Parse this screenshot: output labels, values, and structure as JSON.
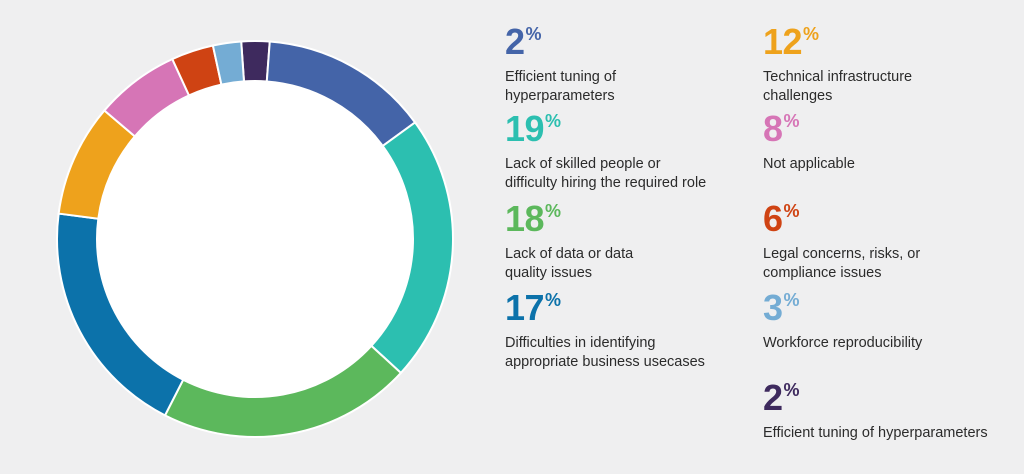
{
  "chart_data": {
    "type": "pie",
    "donut": true,
    "slices": [
      {
        "label": "Efficient tuning of hyperparameters",
        "value": 2,
        "color": "#3e2a5e"
      },
      {
        "label": "Technical infrastructure challenges",
        "value": 12,
        "color": "#4464a8"
      },
      {
        "label": "Lack of skilled people or difficulty hiring the required role",
        "value": 19,
        "color": "#2cbfb0"
      },
      {
        "label": "Lack of data or data quality issues",
        "value": 18,
        "color": "#5cb85c"
      },
      {
        "label": "Difficulties in identifying appropriate business usecases",
        "value": 17,
        "color": "#0c72aa"
      },
      {
        "label": "Not applicable",
        "value": 8,
        "color": "#eea21c"
      },
      {
        "label": "Legal concerns, risks, or compliance issues",
        "value": 6,
        "color": "#d675b6"
      },
      {
        "label": "Workforce reproducibility",
        "value": 3,
        "color": "#cf4313"
      },
      {
        "label": "Efficient tuning of hyperparameters",
        "value": 2,
        "color": "#74acd4"
      }
    ]
  },
  "legend": [
    {
      "value": "2",
      "sign": "%",
      "lines": [
        "Efficient tuning of",
        "hyperparameters"
      ],
      "color": "#4464a8"
    },
    {
      "value": "12",
      "sign": "%",
      "lines": [
        "Technical infrastructure",
        "challenges"
      ],
      "color": "#eea21c"
    },
    {
      "value": "19",
      "sign": "%",
      "lines": [
        "Lack of skilled people or",
        "difficulty hiring the required role"
      ],
      "color": "#2cbfb0"
    },
    {
      "value": "8",
      "sign": "%",
      "lines": [
        "Not applicable"
      ],
      "color": "#d675b6"
    },
    {
      "value": "18",
      "sign": "%",
      "lines": [
        "Lack of data or data",
        "quality issues"
      ],
      "color": "#5cb85c"
    },
    {
      "value": "6",
      "sign": "%",
      "lines": [
        "Legal concerns, risks, or",
        "compliance issues"
      ],
      "color": "#cf4313"
    },
    {
      "value": "17",
      "sign": "%",
      "lines": [
        "Difficulties in identifying",
        "appropriate business usecases"
      ],
      "color": "#0c72aa"
    },
    {
      "value": "3",
      "sign": "%",
      "lines": [
        "Workforce reproducibility"
      ],
      "color": "#74acd4"
    },
    {
      "value": "2",
      "sign": "%",
      "lines": [
        "Efficient tuning of hyperparameters"
      ],
      "color": "#3e2a5e"
    }
  ]
}
